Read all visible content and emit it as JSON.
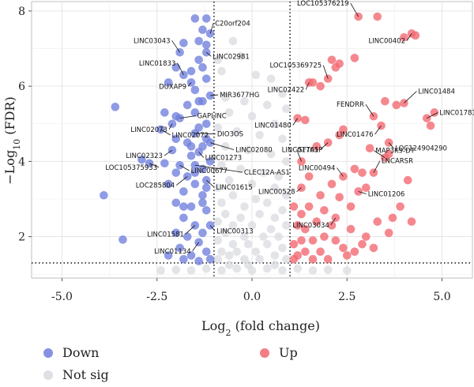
{
  "chart_data": {
    "type": "scatter",
    "title": "",
    "xlabel": "Log2 (fold change)",
    "ylabel": "-Log10 (FDR)",
    "xlim": [
      -5.8,
      5.8
    ],
    "ylim": [
      0.9,
      8.25
    ],
    "x_ticks": [
      "-5.0",
      "-2.5",
      "0.0",
      "2.5",
      "5.0"
    ],
    "x_tick_values": [
      -5,
      -2.5,
      0,
      2.5,
      5
    ],
    "y_ticks": [
      "2",
      "4",
      "6",
      "8"
    ],
    "y_tick_values": [
      2,
      4,
      6,
      8
    ],
    "grid": true,
    "thresholds": {
      "log2fc": [
        -1,
        1
      ],
      "neg_log10_fdr": 1.3
    },
    "legend": {
      "placement": "bottom",
      "items": [
        {
          "label": "Down",
          "color": "#6f7fdc"
        },
        {
          "label": "Up",
          "color": "#f26670"
        },
        {
          "label": "Not sig",
          "color": "#d9dbe0"
        }
      ]
    },
    "colors": {
      "Down": "#6f7fdc",
      "Up": "#f26670",
      "Not sig": "#d9dbe0"
    },
    "series": [
      {
        "name": "Up",
        "points": [
          {
            "x": 2.8,
            "y": 7.85,
            "label": "LOC105376219"
          },
          {
            "x": 3.3,
            "y": 7.85
          },
          {
            "x": 4.0,
            "y": 7.3
          },
          {
            "x": 4.2,
            "y": 7.4,
            "label": "LINC00402"
          },
          {
            "x": 4.3,
            "y": 7.35
          },
          {
            "x": 2.1,
            "y": 6.7
          },
          {
            "x": 2.3,
            "y": 6.6
          },
          {
            "x": 2.7,
            "y": 6.75
          },
          {
            "x": 2.2,
            "y": 6.5
          },
          {
            "x": 2.0,
            "y": 6.2,
            "label": "LOC105369725"
          },
          {
            "x": 1.8,
            "y": 6.0
          },
          {
            "x": 1.6,
            "y": 6.1
          },
          {
            "x": 1.5,
            "y": 6.1,
            "label": "LINC02422"
          },
          {
            "x": 3.8,
            "y": 5.5
          },
          {
            "x": 4.0,
            "y": 5.55,
            "label": "LINC01484"
          },
          {
            "x": 3.5,
            "y": 5.6
          },
          {
            "x": 3.2,
            "y": 5.2,
            "label": "FENDRR"
          },
          {
            "x": 4.8,
            "y": 5.3
          },
          {
            "x": 4.6,
            "y": 5.15,
            "label": "LINC01781"
          },
          {
            "x": 4.7,
            "y": 4.95
          },
          {
            "x": 1.4,
            "y": 5.1
          },
          {
            "x": 1.2,
            "y": 5.15,
            "label": "LINC01480"
          },
          {
            "x": 3.4,
            "y": 4.95,
            "label": "LINC01476"
          },
          {
            "x": 3.6,
            "y": 4.5,
            "label": "LOC124904290"
          },
          {
            "x": 2.3,
            "y": 4.7
          },
          {
            "x": 2.4,
            "y": 4.85
          },
          {
            "x": 2.0,
            "y": 4.5,
            "label": "LINC01765"
          },
          {
            "x": 1.7,
            "y": 4.4
          },
          {
            "x": 3.1,
            "y": 4.35
          },
          {
            "x": 3.5,
            "y": 4.1,
            "label": "MAP3K9-DT"
          },
          {
            "x": 3.6,
            "y": 4.2
          },
          {
            "x": 2.9,
            "y": 3.7
          },
          {
            "x": 2.7,
            "y": 3.8
          },
          {
            "x": 3.2,
            "y": 3.7,
            "label": "LNCARSR"
          },
          {
            "x": 1.3,
            "y": 4.0,
            "label": "SFTA1P"
          },
          {
            "x": 2.4,
            "y": 3.6,
            "label": "LINC00494"
          },
          {
            "x": 1.5,
            "y": 3.6
          },
          {
            "x": 1.3,
            "y": 3.3,
            "label": "LINC00528"
          },
          {
            "x": 3.0,
            "y": 3.3
          },
          {
            "x": 2.8,
            "y": 3.2,
            "label": "LINC01206"
          },
          {
            "x": 2.3,
            "y": 3.05
          },
          {
            "x": 2.6,
            "y": 2.8
          },
          {
            "x": 2.2,
            "y": 2.5,
            "label": "LINC03034"
          },
          {
            "x": 1.9,
            "y": 2.7
          },
          {
            "x": 4.1,
            "y": 3.5
          },
          {
            "x": 4.2,
            "y": 2.4
          },
          {
            "x": 3.9,
            "y": 2.8
          },
          {
            "x": 3.7,
            "y": 2.5
          },
          {
            "x": 3.6,
            "y": 2.1
          },
          {
            "x": 3.3,
            "y": 2.4
          },
          {
            "x": 3.0,
            "y": 2.0
          },
          {
            "x": 2.9,
            "y": 1.8
          },
          {
            "x": 2.6,
            "y": 2.2
          },
          {
            "x": 2.4,
            "y": 1.7
          },
          {
            "x": 2.5,
            "y": 1.5
          },
          {
            "x": 2.2,
            "y": 1.9
          },
          {
            "x": 2.1,
            "y": 2.3
          },
          {
            "x": 1.9,
            "y": 2.0
          },
          {
            "x": 1.8,
            "y": 1.6
          },
          {
            "x": 1.7,
            "y": 2.4
          },
          {
            "x": 1.6,
            "y": 1.9
          },
          {
            "x": 1.5,
            "y": 2.8
          },
          {
            "x": 1.4,
            "y": 2.2
          },
          {
            "x": 1.4,
            "y": 1.6
          },
          {
            "x": 1.3,
            "y": 2.6
          },
          {
            "x": 1.3,
            "y": 1.9
          },
          {
            "x": 1.2,
            "y": 2.3
          },
          {
            "x": 1.2,
            "y": 1.5
          },
          {
            "x": 1.1,
            "y": 2.8
          },
          {
            "x": 1.1,
            "y": 1.8
          },
          {
            "x": 1.1,
            "y": 1.4
          },
          {
            "x": 1.6,
            "y": 1.4
          },
          {
            "x": 2.0,
            "y": 1.4
          },
          {
            "x": 2.7,
            "y": 1.6
          },
          {
            "x": 3.2,
            "y": 1.7
          },
          {
            "x": 1.8,
            "y": 3.1
          },
          {
            "x": 2.1,
            "y": 3.4
          }
        ]
      },
      {
        "name": "Down",
        "points": [
          {
            "x": -1.5,
            "y": 7.8
          },
          {
            "x": -1.2,
            "y": 7.8
          },
          {
            "x": -1.3,
            "y": 7.5
          },
          {
            "x": -1.1,
            "y": 7.4,
            "label": "C20orf204"
          },
          {
            "x": -1.4,
            "y": 7.2
          },
          {
            "x": -1.2,
            "y": 7.1
          },
          {
            "x": -1.8,
            "y": 7.15
          },
          {
            "x": -1.9,
            "y": 6.9,
            "label": "LINC03043"
          },
          {
            "x": -1.2,
            "y": 6.9,
            "label": "LINC02981"
          },
          {
            "x": -1.4,
            "y": 6.7
          },
          {
            "x": -1.3,
            "y": 6.5
          },
          {
            "x": -1.6,
            "y": 6.4
          },
          {
            "x": -2.0,
            "y": 6.5
          },
          {
            "x": -2.2,
            "y": 6.1
          },
          {
            "x": -1.8,
            "y": 6.3,
            "label": "LINC01833"
          },
          {
            "x": -1.6,
            "y": 6.1,
            "label": "DUXAP9"
          },
          {
            "x": -1.2,
            "y": 6.2
          },
          {
            "x": -1.5,
            "y": 5.9
          },
          {
            "x": -1.1,
            "y": 5.75,
            "label": "MIR3677HG"
          },
          {
            "x": -1.3,
            "y": 5.6
          },
          {
            "x": -1.7,
            "y": 5.5
          },
          {
            "x": -3.6,
            "y": 5.45
          },
          {
            "x": -2.3,
            "y": 5.3
          },
          {
            "x": -2.0,
            "y": 5.2
          },
          {
            "x": -1.9,
            "y": 5.15,
            "label": "GAPLINC"
          },
          {
            "x": -1.5,
            "y": 5.3
          },
          {
            "x": -2.1,
            "y": 5.0,
            "label": "LINC02073"
          },
          {
            "x": -1.4,
            "y": 4.9
          },
          {
            "x": -2.4,
            "y": 4.85,
            "label": "LINC02072"
          },
          {
            "x": -1.5,
            "y": 4.75,
            "label": "DIO3OS"
          },
          {
            "x": -1.2,
            "y": 4.6
          },
          {
            "x": -2.0,
            "y": 4.6
          },
          {
            "x": -1.7,
            "y": 4.5
          },
          {
            "x": -1.3,
            "y": 4.4
          },
          {
            "x": -1.1,
            "y": 4.5,
            "label": "LINC02080"
          },
          {
            "x": -2.1,
            "y": 4.3,
            "label": "LINC02323"
          },
          {
            "x": -1.4,
            "y": 4.25,
            "label": "LINC01273"
          },
          {
            "x": -1.6,
            "y": 4.15
          },
          {
            "x": -2.9,
            "y": 4.05
          },
          {
            "x": -2.7,
            "y": 3.95,
            "label": "LOC105375933"
          },
          {
            "x": -2.3,
            "y": 3.95
          },
          {
            "x": -1.9,
            "y": 3.9,
            "label": "LINC00677"
          },
          {
            "x": -1.5,
            "y": 3.9,
            "label": "CLEC12A-AS1"
          },
          {
            "x": -1.3,
            "y": 3.8
          },
          {
            "x": -2.0,
            "y": 3.7
          },
          {
            "x": -1.7,
            "y": 3.6,
            "label": "LOC285804"
          },
          {
            "x": -1.2,
            "y": 3.5,
            "label": "LINC01615"
          },
          {
            "x": -1.5,
            "y": 3.4
          },
          {
            "x": -2.2,
            "y": 3.4
          },
          {
            "x": -3.9,
            "y": 3.1
          },
          {
            "x": -1.3,
            "y": 3.1
          },
          {
            "x": -1.8,
            "y": 3.2
          },
          {
            "x": -2.0,
            "y": 2.9
          },
          {
            "x": -1.6,
            "y": 2.8
          },
          {
            "x": -1.2,
            "y": 2.7
          },
          {
            "x": -1.8,
            "y": 2.5
          },
          {
            "x": -1.5,
            "y": 2.3,
            "label": "LINC01581"
          },
          {
            "x": -1.1,
            "y": 2.3,
            "label": "LINC00313"
          },
          {
            "x": -1.3,
            "y": 2.1
          },
          {
            "x": -2.0,
            "y": 2.1
          },
          {
            "x": -1.7,
            "y": 2.0
          },
          {
            "x": -3.4,
            "y": 1.92
          },
          {
            "x": -1.4,
            "y": 1.85,
            "label": "LINC01134"
          },
          {
            "x": -1.2,
            "y": 1.6
          },
          {
            "x": -1.9,
            "y": 1.7
          },
          {
            "x": -1.6,
            "y": 1.5
          },
          {
            "x": -2.2,
            "y": 1.5
          },
          {
            "x": -1.1,
            "y": 1.4
          },
          {
            "x": -1.4,
            "y": 1.35
          },
          {
            "x": -1.8,
            "y": 1.4
          },
          {
            "x": -1.3,
            "y": 2.9
          },
          {
            "x": -1.5,
            "y": 3.7
          },
          {
            "x": -1.1,
            "y": 4.0
          },
          {
            "x": -1.6,
            "y": 4.4
          },
          {
            "x": -1.2,
            "y": 5.0
          },
          {
            "x": -1.4,
            "y": 5.6
          },
          {
            "x": -1.8,
            "y": 2.8
          },
          {
            "x": -1.2,
            "y": 3.3
          }
        ]
      },
      {
        "name": "Not sig",
        "points": [
          {
            "x": -0.5,
            "y": 7.2
          },
          {
            "x": -0.3,
            "y": 6.8
          },
          {
            "x": -0.9,
            "y": 6.7
          },
          {
            "x": -0.8,
            "y": 6.4
          },
          {
            "x": 0.1,
            "y": 6.3
          },
          {
            "x": 0.5,
            "y": 6.2
          },
          {
            "x": 0.8,
            "y": 5.8
          },
          {
            "x": -0.7,
            "y": 5.7
          },
          {
            "x": -0.2,
            "y": 5.6
          },
          {
            "x": 0.4,
            "y": 5.5
          },
          {
            "x": 0.9,
            "y": 5.4
          },
          {
            "x": -0.6,
            "y": 5.3
          },
          {
            "x": 0.0,
            "y": 5.2
          },
          {
            "x": 0.6,
            "y": 5.0
          },
          {
            "x": -0.9,
            "y": 4.9
          },
          {
            "x": -0.4,
            "y": 4.8
          },
          {
            "x": 0.2,
            "y": 4.7
          },
          {
            "x": 0.8,
            "y": 4.6
          },
          {
            "x": -0.7,
            "y": 4.4
          },
          {
            "x": -0.1,
            "y": 4.3
          },
          {
            "x": 0.5,
            "y": 4.2
          },
          {
            "x": 0.9,
            "y": 4.0
          },
          {
            "x": -0.8,
            "y": 3.9
          },
          {
            "x": -0.3,
            "y": 3.8
          },
          {
            "x": 0.3,
            "y": 3.7
          },
          {
            "x": 0.7,
            "y": 3.6
          },
          {
            "x": -0.6,
            "y": 3.5
          },
          {
            "x": -0.9,
            "y": 3.3
          },
          {
            "x": 0.0,
            "y": 3.4
          },
          {
            "x": 0.6,
            "y": 3.3
          },
          {
            "x": -0.5,
            "y": 3.1
          },
          {
            "x": 0.1,
            "y": 3.0
          },
          {
            "x": 0.9,
            "y": 3.1
          },
          {
            "x": -0.8,
            "y": 2.9
          },
          {
            "x": -0.2,
            "y": 2.8
          },
          {
            "x": 0.4,
            "y": 2.9
          },
          {
            "x": 0.8,
            "y": 2.7
          },
          {
            "x": -0.7,
            "y": 2.6
          },
          {
            "x": -0.3,
            "y": 2.5
          },
          {
            "x": 0.2,
            "y": 2.6
          },
          {
            "x": 0.6,
            "y": 2.5
          },
          {
            "x": -0.9,
            "y": 2.4
          },
          {
            "x": -0.5,
            "y": 2.3
          },
          {
            "x": 0.0,
            "y": 2.3
          },
          {
            "x": 0.5,
            "y": 2.2
          },
          {
            "x": 0.9,
            "y": 2.3
          },
          {
            "x": -0.7,
            "y": 2.1
          },
          {
            "x": -0.2,
            "y": 2.0
          },
          {
            "x": 0.3,
            "y": 2.0
          },
          {
            "x": 0.7,
            "y": 2.0
          },
          {
            "x": -0.9,
            "y": 1.9
          },
          {
            "x": -0.5,
            "y": 1.8
          },
          {
            "x": -0.1,
            "y": 1.8
          },
          {
            "x": 0.4,
            "y": 1.8
          },
          {
            "x": 0.8,
            "y": 1.7
          },
          {
            "x": -0.8,
            "y": 1.6
          },
          {
            "x": -0.4,
            "y": 1.6
          },
          {
            "x": 0.1,
            "y": 1.6
          },
          {
            "x": 0.6,
            "y": 1.5
          },
          {
            "x": -0.6,
            "y": 1.5
          },
          {
            "x": -0.2,
            "y": 1.4
          },
          {
            "x": 0.2,
            "y": 1.4
          },
          {
            "x": 0.9,
            "y": 1.4
          },
          {
            "x": -0.9,
            "y": 1.4
          },
          {
            "x": -1.6,
            "y": 1.1
          },
          {
            "x": -1.2,
            "y": 1.15
          },
          {
            "x": -0.8,
            "y": 1.1
          },
          {
            "x": -0.4,
            "y": 1.15
          },
          {
            "x": 0.0,
            "y": 1.1
          },
          {
            "x": 0.4,
            "y": 1.15
          },
          {
            "x": 0.8,
            "y": 1.1
          },
          {
            "x": 1.2,
            "y": 1.15
          },
          {
            "x": 1.6,
            "y": 1.1
          },
          {
            "x": 2.0,
            "y": 1.12
          },
          {
            "x": -2.0,
            "y": 1.12
          },
          {
            "x": 2.5,
            "y": 1.1
          },
          {
            "x": -2.4,
            "y": 1.1
          },
          {
            "x": -0.6,
            "y": 1.25
          },
          {
            "x": 0.6,
            "y": 1.25
          },
          {
            "x": -0.1,
            "y": 1.25
          }
        ]
      }
    ]
  }
}
